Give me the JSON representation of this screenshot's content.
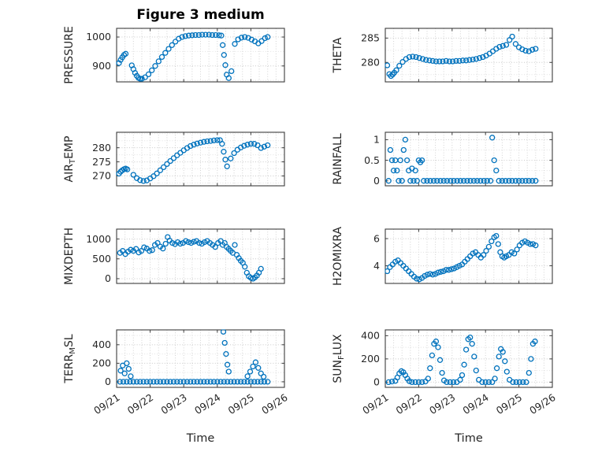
{
  "chart_data": {
    "type": "scatter",
    "title": "Figure 3 medium",
    "xlabel": "Time",
    "x_ticks": [
      "09/21",
      "09/22",
      "09/23",
      "09/24",
      "09/25",
      "09/26"
    ],
    "x_tick_positions": [
      0,
      1,
      2,
      3,
      4,
      5
    ],
    "xlim": [
      0,
      5
    ],
    "x_unit": "days since 09/21",
    "marker": {
      "shape": "open-circle",
      "color": "#0072BD"
    },
    "grid": {
      "style": "dotted",
      "minor_x_step": 0.25
    },
    "subplots": [
      {
        "id": "pressure",
        "ylabel": "PRESSURE",
        "ylabel_parts": {
          "pre": "PRESSURE",
          "sub": "",
          "post": ""
        },
        "yticks": [
          900,
          1000
        ],
        "ytick_labels": [
          "900",
          "1000"
        ],
        "ylim": [
          845,
          1030
        ],
        "x": [
          0.07,
          0.12,
          0.17,
          0.22,
          0.27,
          0.45,
          0.5,
          0.55,
          0.6,
          0.65,
          0.7,
          0.75,
          0.85,
          0.95,
          1.05,
          1.15,
          1.25,
          1.35,
          1.45,
          1.55,
          1.65,
          1.75,
          1.85,
          1.95,
          2.05,
          2.15,
          2.25,
          2.35,
          2.45,
          2.55,
          2.65,
          2.75,
          2.85,
          2.95,
          3.05,
          3.12,
          3.16,
          3.2,
          3.24,
          3.28,
          3.34,
          3.42,
          3.52,
          3.62,
          3.72,
          3.82,
          3.92,
          4.02,
          4.12,
          4.22,
          4.32,
          4.42,
          4.5
        ],
        "y": [
          910,
          921,
          930,
          938,
          942,
          902,
          889,
          876,
          866,
          859,
          856,
          856,
          861,
          871,
          885,
          900,
          916,
          931,
          945,
          959,
          972,
          984,
          994,
          1000,
          1003,
          1005,
          1006,
          1007,
          1007,
          1008,
          1008,
          1008,
          1007,
          1007,
          1006,
          1005,
          972,
          938,
          903,
          870,
          858,
          882,
          976,
          992,
          998,
          1000,
          997,
          991,
          985,
          978,
          986,
          996,
          1000
        ]
      },
      {
        "id": "theta",
        "ylabel": "THETA",
        "ylabel_parts": {
          "pre": "THETA",
          "sub": "",
          "post": ""
        },
        "yticks": [
          280,
          285
        ],
        "ytick_labels": [
          "280",
          "285"
        ],
        "ylim": [
          276,
          287
        ],
        "x": [
          0.06,
          0.12,
          0.17,
          0.22,
          0.27,
          0.33,
          0.42,
          0.52,
          0.62,
          0.72,
          0.82,
          0.92,
          1.02,
          1.12,
          1.22,
          1.32,
          1.42,
          1.52,
          1.62,
          1.72,
          1.82,
          1.92,
          2.02,
          2.12,
          2.22,
          2.32,
          2.42,
          2.52,
          2.62,
          2.72,
          2.82,
          2.92,
          3.02,
          3.12,
          3.22,
          3.32,
          3.42,
          3.52,
          3.62,
          3.72,
          3.8,
          3.9,
          4.0,
          4.1,
          4.2,
          4.3,
          4.4,
          4.5
        ],
        "y": [
          279.4,
          277.6,
          277.2,
          277.5,
          277.9,
          278.4,
          279.3,
          280.1,
          280.7,
          281.1,
          281.2,
          281.1,
          280.9,
          280.7,
          280.5,
          280.4,
          280.3,
          280.2,
          280.2,
          280.2,
          280.3,
          280.2,
          280.2,
          280.3,
          280.3,
          280.4,
          280.4,
          280.5,
          280.6,
          280.7,
          280.9,
          281.1,
          281.4,
          281.8,
          282.3,
          282.8,
          283.2,
          283.4,
          283.6,
          284.6,
          285.3,
          283.8,
          283.1,
          282.7,
          282.4,
          282.3,
          282.6,
          282.8
        ]
      },
      {
        "id": "airtemp",
        "ylabel": "AIR_TEMP",
        "ylabel_parts": {
          "pre": "AIR",
          "sub": "T",
          "post": "EMP"
        },
        "yticks": [
          270,
          275,
          280
        ],
        "ytick_labels": [
          "270",
          "275",
          "280"
        ],
        "ylim": [
          266.5,
          285.5
        ],
        "x": [
          0.07,
          0.12,
          0.17,
          0.22,
          0.27,
          0.32,
          0.5,
          0.6,
          0.7,
          0.8,
          0.9,
          1.0,
          1.1,
          1.2,
          1.3,
          1.4,
          1.5,
          1.6,
          1.7,
          1.8,
          1.9,
          2.0,
          2.1,
          2.2,
          2.3,
          2.4,
          2.5,
          2.6,
          2.7,
          2.8,
          2.9,
          3.0,
          3.08,
          3.14,
          3.19,
          3.24,
          3.29,
          3.4,
          3.5,
          3.6,
          3.7,
          3.8,
          3.9,
          4.0,
          4.1,
          4.2,
          4.3,
          4.4,
          4.5
        ],
        "y": [
          270.8,
          271.5,
          272.0,
          272.4,
          272.6,
          272.3,
          270.4,
          269.2,
          268.5,
          268.2,
          268.4,
          269.1,
          269.9,
          270.9,
          272.0,
          273.1,
          274.2,
          275.3,
          276.3,
          277.3,
          278.2,
          279.1,
          279.9,
          280.6,
          281.1,
          281.5,
          281.8,
          282.1,
          282.3,
          282.4,
          282.6,
          282.7,
          282.7,
          281.4,
          278.6,
          275.8,
          273.4,
          276.2,
          278.1,
          279.3,
          280.1,
          280.7,
          281.1,
          281.4,
          281.4,
          280.9,
          279.9,
          280.4,
          280.9
        ]
      },
      {
        "id": "rainfall",
        "ylabel": "RAINFALL",
        "ylabel_parts": {
          "pre": "RAINFALL",
          "sub": "",
          "post": ""
        },
        "yticks": [
          0,
          0.5,
          1
        ],
        "ytick_labels": [
          "0",
          "0.5",
          "1"
        ],
        "ylim": [
          -0.12,
          1.18
        ],
        "x": [
          0.1,
          0.15,
          0.2,
          0.25,
          0.3,
          0.35,
          0.4,
          0.45,
          0.5,
          0.55,
          0.6,
          0.65,
          0.7,
          0.75,
          0.8,
          0.85,
          0.9,
          0.95,
          1.0,
          1.05,
          1.1,
          1.15,
          1.25,
          1.35,
          1.45,
          1.55,
          1.65,
          1.75,
          1.85,
          1.95,
          2.05,
          2.15,
          2.25,
          2.35,
          2.45,
          2.55,
          2.65,
          2.75,
          2.85,
          2.95,
          3.05,
          3.15,
          3.2,
          3.26,
          3.32,
          3.4,
          3.5,
          3.6,
          3.7,
          3.8,
          3.9,
          4.0,
          4.1,
          4.2,
          4.3,
          4.4,
          4.5
        ],
        "y": [
          0,
          0.75,
          0.5,
          0.25,
          0.5,
          0.25,
          0,
          0.5,
          0,
          0.75,
          1,
          0.5,
          0.25,
          0,
          0.3,
          0,
          0.25,
          0,
          0.5,
          0.45,
          0.5,
          0,
          0,
          0,
          0,
          0,
          0,
          0,
          0,
          0,
          0,
          0,
          0,
          0,
          0,
          0,
          0,
          0,
          0,
          0,
          0,
          0,
          1.05,
          0.5,
          0.25,
          0,
          0,
          0,
          0,
          0,
          0,
          0,
          0,
          0,
          0,
          0,
          0
        ]
      },
      {
        "id": "mixdepth",
        "ylabel": "MIXDEPTH",
        "ylabel_parts": {
          "pre": "MIXDEPTH",
          "sub": "",
          "post": ""
        },
        "yticks": [
          0,
          500,
          1000
        ],
        "ytick_labels": [
          "0",
          "500",
          "1000"
        ],
        "ylim": [
          -120,
          1250
        ],
        "x": [
          0.1,
          0.18,
          0.26,
          0.34,
          0.42,
          0.5,
          0.58,
          0.66,
          0.74,
          0.82,
          0.9,
          0.98,
          1.06,
          1.14,
          1.22,
          1.3,
          1.38,
          1.46,
          1.52,
          1.58,
          1.66,
          1.74,
          1.82,
          1.9,
          1.98,
          2.06,
          2.14,
          2.22,
          2.3,
          2.38,
          2.46,
          2.54,
          2.62,
          2.7,
          2.78,
          2.86,
          2.94,
          3.02,
          3.1,
          3.16,
          3.22,
          3.28,
          3.34,
          3.4,
          3.46,
          3.52,
          3.58,
          3.64,
          3.7,
          3.76,
          3.82,
          3.88,
          3.94,
          4.0,
          4.06,
          4.12,
          4.18,
          4.24,
          4.3
        ],
        "y": [
          650,
          700,
          620,
          680,
          730,
          700,
          750,
          660,
          700,
          790,
          760,
          700,
          720,
          850,
          900,
          810,
          760,
          880,
          1050,
          960,
          900,
          870,
          920,
          880,
          900,
          950,
          920,
          900,
          930,
          950,
          900,
          880,
          920,
          950,
          900,
          850,
          800,
          900,
          950,
          850,
          900,
          800,
          750,
          700,
          650,
          850,
          600,
          520,
          450,
          400,
          300,
          150,
          60,
          20,
          0,
          30,
          80,
          150,
          250
        ]
      },
      {
        "id": "h2omixra",
        "ylabel": "H2OMIXRA",
        "ylabel_parts": {
          "pre": "H2OMIXRA",
          "sub": "",
          "post": ""
        },
        "yticks": [
          4,
          6
        ],
        "ytick_labels": [
          "4",
          "6"
        ],
        "ylim": [
          2.7,
          6.7
        ],
        "x": [
          0.06,
          0.14,
          0.22,
          0.3,
          0.38,
          0.46,
          0.54,
          0.62,
          0.7,
          0.78,
          0.86,
          0.94,
          1.02,
          1.1,
          1.18,
          1.26,
          1.34,
          1.42,
          1.5,
          1.58,
          1.66,
          1.74,
          1.82,
          1.9,
          1.98,
          2.06,
          2.14,
          2.22,
          2.3,
          2.38,
          2.46,
          2.54,
          2.62,
          2.7,
          2.78,
          2.86,
          2.94,
          3.02,
          3.1,
          3.18,
          3.26,
          3.32,
          3.38,
          3.44,
          3.5,
          3.56,
          3.62,
          3.7,
          3.78,
          3.86,
          3.94,
          4.02,
          4.1,
          4.18,
          4.26,
          4.34,
          4.42,
          4.5
        ],
        "y": [
          3.6,
          3.9,
          4.1,
          4.3,
          4.4,
          4.2,
          4.0,
          3.8,
          3.6,
          3.4,
          3.2,
          3.05,
          3.0,
          3.1,
          3.25,
          3.35,
          3.4,
          3.35,
          3.4,
          3.5,
          3.55,
          3.6,
          3.7,
          3.7,
          3.75,
          3.8,
          3.9,
          4.0,
          4.1,
          4.3,
          4.5,
          4.7,
          4.9,
          5.0,
          4.8,
          4.6,
          4.8,
          5.1,
          5.4,
          5.8,
          6.1,
          6.2,
          5.6,
          5.0,
          4.7,
          4.6,
          4.7,
          4.8,
          5.0,
          4.9,
          5.2,
          5.5,
          5.7,
          5.8,
          5.7,
          5.6,
          5.6,
          5.5
        ]
      },
      {
        "id": "terrmsl",
        "ylabel": "TERR_MSL",
        "ylabel_parts": {
          "pre": "TERR",
          "sub": "M",
          "post": "SL"
        },
        "yticks": [
          0,
          200,
          400
        ],
        "ytick_labels": [
          "0",
          "200",
          "400"
        ],
        "ylim": [
          -60,
          560
        ],
        "x": [
          0.12,
          0.18,
          0.24,
          0.3,
          0.36,
          0.42,
          3.18,
          3.22,
          3.26,
          3.3,
          3.34,
          3.9,
          3.98,
          4.06,
          4.14,
          4.22,
          4.3,
          4.38,
          0.1,
          0.2,
          0.3,
          0.4,
          0.5,
          0.6,
          0.7,
          0.8,
          0.9,
          1.0,
          1.1,
          1.2,
          1.3,
          1.4,
          1.5,
          1.6,
          1.7,
          1.8,
          1.9,
          2.0,
          2.1,
          2.2,
          2.3,
          2.4,
          2.5,
          2.6,
          2.7,
          2.8,
          2.9,
          3.0,
          3.1,
          3.2,
          3.3,
          3.4,
          3.5,
          3.6,
          3.7,
          3.8,
          3.9,
          4.0,
          4.1,
          4.2,
          4.3,
          4.4,
          4.5
        ],
        "y": [
          120,
          175,
          90,
          200,
          140,
          60,
          540,
          420,
          300,
          185,
          110,
          60,
          110,
          165,
          210,
          150,
          90,
          55,
          0,
          0,
          0,
          0,
          0,
          0,
          0,
          0,
          0,
          0,
          0,
          0,
          0,
          0,
          0,
          0,
          0,
          0,
          0,
          0,
          0,
          0,
          0,
          0,
          0,
          0,
          0,
          0,
          0,
          0,
          0,
          0,
          0,
          0,
          0,
          0,
          0,
          0,
          0,
          0,
          0,
          0,
          0,
          0,
          0
        ]
      },
      {
        "id": "sunflux",
        "ylabel": "SUN_FLUX",
        "ylabel_parts": {
          "pre": "SUN",
          "sub": "F",
          "post": "LUX"
        },
        "yticks": [
          0,
          200,
          400
        ],
        "ytick_labels": [
          "0",
          "200",
          "400"
        ],
        "ylim": [
          -45,
          450
        ],
        "x": [
          0.1,
          0.2,
          0.3,
          0.36,
          0.42,
          0.48,
          0.54,
          0.6,
          0.66,
          0.72,
          0.8,
          0.9,
          1.0,
          1.1,
          1.2,
          1.28,
          1.34,
          1.4,
          1.46,
          1.52,
          1.58,
          1.64,
          1.7,
          1.76,
          1.84,
          1.94,
          2.04,
          2.14,
          2.24,
          2.3,
          2.36,
          2.42,
          2.48,
          2.54,
          2.6,
          2.66,
          2.72,
          2.8,
          2.9,
          3.0,
          3.1,
          3.2,
          3.28,
          3.34,
          3.4,
          3.46,
          3.52,
          3.58,
          3.64,
          3.72,
          3.82,
          3.92,
          4.02,
          4.12,
          4.22,
          4.3,
          4.36,
          4.42,
          4.48
        ],
        "y": [
          0,
          5,
          10,
          40,
          75,
          95,
          85,
          60,
          30,
          8,
          0,
          0,
          0,
          0,
          5,
          30,
          120,
          230,
          330,
          350,
          300,
          190,
          80,
          15,
          0,
          0,
          0,
          0,
          20,
          60,
          150,
          280,
          370,
          385,
          330,
          220,
          100,
          20,
          0,
          0,
          0,
          0,
          30,
          120,
          220,
          285,
          260,
          180,
          90,
          20,
          0,
          0,
          0,
          0,
          0,
          80,
          200,
          330,
          350
        ]
      }
    ]
  }
}
